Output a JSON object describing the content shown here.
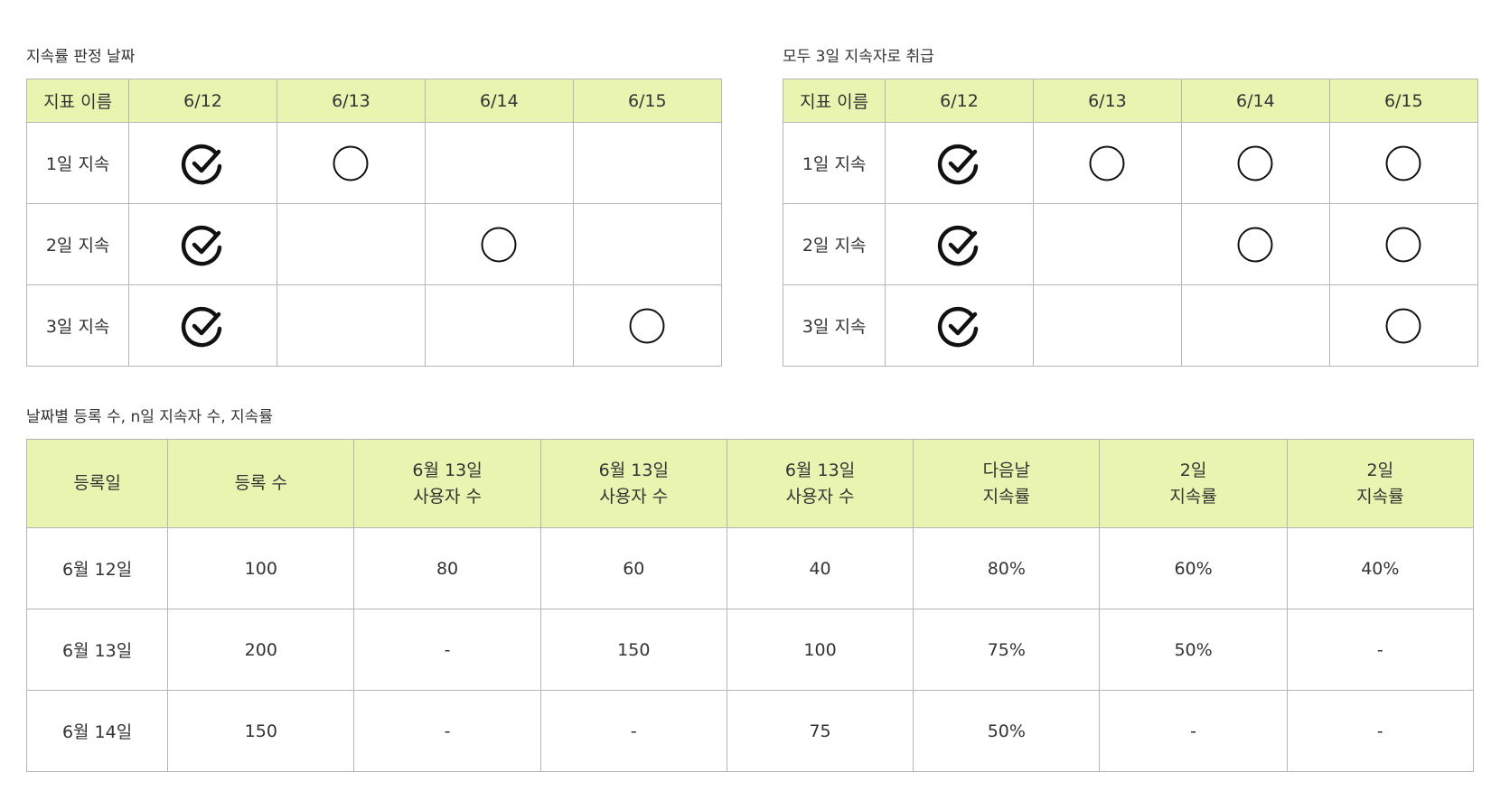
{
  "retention_rule": {
    "caption": "지속률 판정 날짜",
    "columns": [
      "지표 이름",
      "6/12",
      "6/13",
      "6/14",
      "6/15"
    ],
    "rows": [
      {
        "name": "1일 지속",
        "marks": [
          "check",
          "circle",
          "",
          ""
        ]
      },
      {
        "name": "2일 지속",
        "marks": [
          "check",
          "",
          "circle",
          ""
        ]
      },
      {
        "name": "3일 지속",
        "marks": [
          "check",
          "",
          "",
          "circle"
        ]
      }
    ]
  },
  "all_three_day": {
    "caption": "모두 3일 지속자로 취급",
    "columns": [
      "지표 이름",
      "6/12",
      "6/13",
      "6/14",
      "6/15"
    ],
    "rows": [
      {
        "name": "1일 지속",
        "marks": [
          "check",
          "circle",
          "circle",
          "circle"
        ]
      },
      {
        "name": "2일 지속",
        "marks": [
          "check",
          "",
          "circle",
          "circle"
        ]
      },
      {
        "name": "3일 지속",
        "marks": [
          "check",
          "",
          "",
          "circle"
        ]
      }
    ]
  },
  "daily_stats": {
    "caption": "날짜별 등록 수, n일 지속자 수, 지속률",
    "columns": [
      {
        "line1": "등록일",
        "line2": ""
      },
      {
        "line1": "등록 수",
        "line2": ""
      },
      {
        "line1": "6월 13일",
        "line2": "사용자 수"
      },
      {
        "line1": "6월 13일",
        "line2": "사용자 수"
      },
      {
        "line1": "6월 13일",
        "line2": "사용자 수"
      },
      {
        "line1": "다음날",
        "line2": "지속률"
      },
      {
        "line1": "2일",
        "line2": "지속률"
      },
      {
        "line1": "2일",
        "line2": "지속률"
      }
    ],
    "rows": [
      [
        "6월 12일",
        "100",
        "80",
        "60",
        "40",
        "80%",
        "60%",
        "40%"
      ],
      [
        "6월 13일",
        "200",
        "-",
        "150",
        "100",
        "75%",
        "50%",
        "-"
      ],
      [
        "6월 14일",
        "150",
        "-",
        "-",
        "75",
        "50%",
        "-",
        "-"
      ]
    ]
  }
}
